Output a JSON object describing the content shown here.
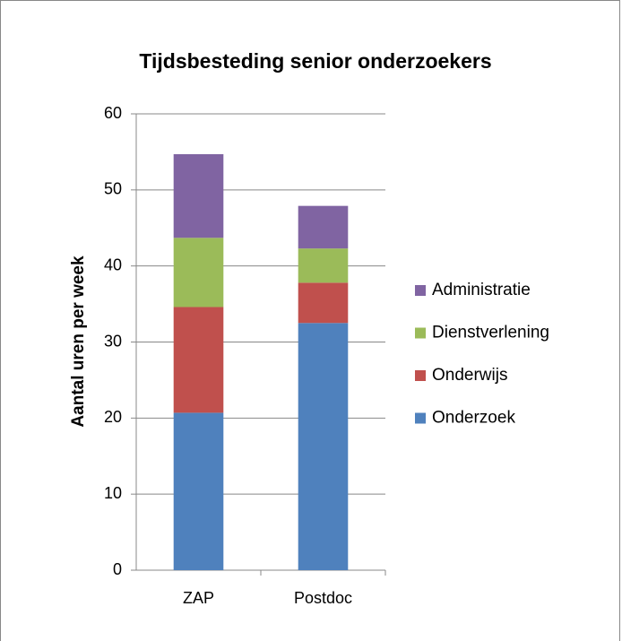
{
  "chart_data": {
    "type": "stacked_bar",
    "title": "Tijdsbesteding senior onderzoekers",
    "y_label": "Aantal uren per week",
    "categories": [
      "ZAP",
      "Postdoc"
    ],
    "series": [
      {
        "name": "Onderzoek",
        "color": "#4f81bd",
        "values": [
          20.7,
          32.5
        ]
      },
      {
        "name": "Onderwijs",
        "color": "#c0504d",
        "values": [
          13.9,
          5.3
        ]
      },
      {
        "name": "Dienstverlening",
        "color": "#9bbb59",
        "values": [
          9.1,
          4.5
        ]
      },
      {
        "name": "Administratie",
        "color": "#8064a2",
        "values": [
          11.0,
          5.6
        ]
      }
    ],
    "ylim": [
      0,
      60
    ],
    "yticks": [
      0,
      10,
      20,
      30,
      40,
      50,
      60
    ],
    "grid": true,
    "legend": "right"
  }
}
